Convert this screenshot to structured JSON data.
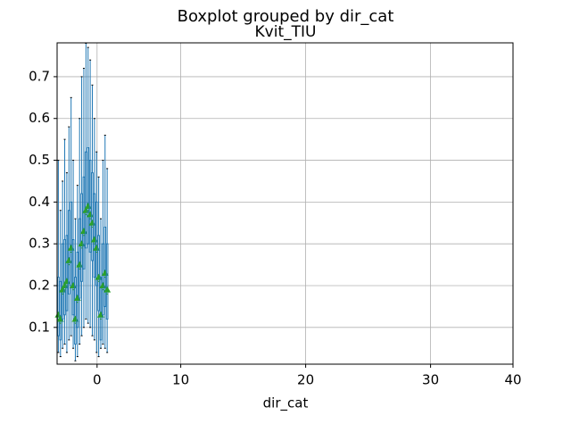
{
  "chart_data": {
    "type": "boxplot",
    "title": "Boxplot grouped by dir_cat",
    "subtitle": "Kvit_TIU",
    "x_label": "dir_cat",
    "xlim": [
      -3.2,
      33.3
    ],
    "xticks": [
      0,
      {
        "value": 6.7,
        "label": "10"
      },
      {
        "value": 16.7,
        "label": "20"
      },
      {
        "value": 26.7,
        "label": "30"
      },
      {
        "value": 33.3,
        "label": "40"
      }
    ],
    "ylim": [
      0.012,
      0.781
    ],
    "yticks": [
      0.1,
      0.2,
      0.3,
      0.4,
      0.5,
      0.6,
      0.7
    ],
    "grid": true,
    "box_color": "#1f77b4",
    "mean_color": "#2ca02c",
    "positions": [
      -3.1,
      -2.93,
      -2.76,
      -2.59,
      -2.42,
      -2.25,
      -2.08,
      -1.91,
      -1.74,
      -1.57,
      -1.4,
      -1.23,
      -1.06,
      -0.89,
      -0.72,
      -0.55,
      -0.38,
      -0.21,
      -0.04,
      0.13,
      0.3,
      0.47,
      0.64,
      0.81
    ],
    "whislo": [
      0.04,
      0.03,
      0.05,
      0.06,
      0.04,
      0.07,
      0.08,
      0.05,
      0.02,
      0.03,
      0.06,
      0.08,
      0.1,
      0.12,
      0.11,
      0.1,
      0.08,
      0.07,
      0.04,
      0.03,
      0.05,
      0.06,
      0.05,
      0.04
    ],
    "q1": [
      0.08,
      0.07,
      0.12,
      0.13,
      0.14,
      0.18,
      0.2,
      0.13,
      0.06,
      0.1,
      0.17,
      0.21,
      0.24,
      0.29,
      0.3,
      0.28,
      0.26,
      0.22,
      0.2,
      0.14,
      0.07,
      0.13,
      0.15,
      0.12
    ],
    "med": [
      0.12,
      0.11,
      0.18,
      0.19,
      0.2,
      0.25,
      0.28,
      0.19,
      0.11,
      0.16,
      0.24,
      0.29,
      0.32,
      0.37,
      0.38,
      0.36,
      0.34,
      0.3,
      0.28,
      0.21,
      0.12,
      0.19,
      0.22,
      0.18
    ],
    "q3": [
      0.22,
      0.21,
      0.3,
      0.31,
      0.32,
      0.38,
      0.4,
      0.31,
      0.22,
      0.28,
      0.36,
      0.42,
      0.46,
      0.52,
      0.53,
      0.5,
      0.47,
      0.42,
      0.4,
      0.32,
      0.22,
      0.3,
      0.34,
      0.3
    ],
    "whishi": [
      0.5,
      0.38,
      0.45,
      0.55,
      0.47,
      0.58,
      0.65,
      0.5,
      0.36,
      0.44,
      0.6,
      0.7,
      0.72,
      0.78,
      0.77,
      0.74,
      0.68,
      0.6,
      0.52,
      0.46,
      0.36,
      0.5,
      0.56,
      0.48
    ],
    "means": [
      0.13,
      0.12,
      0.19,
      0.2,
      0.21,
      0.26,
      0.29,
      0.2,
      0.12,
      0.17,
      0.25,
      0.3,
      0.33,
      0.38,
      0.39,
      0.37,
      0.35,
      0.31,
      0.29,
      0.22,
      0.13,
      0.2,
      0.23,
      0.19
    ]
  }
}
